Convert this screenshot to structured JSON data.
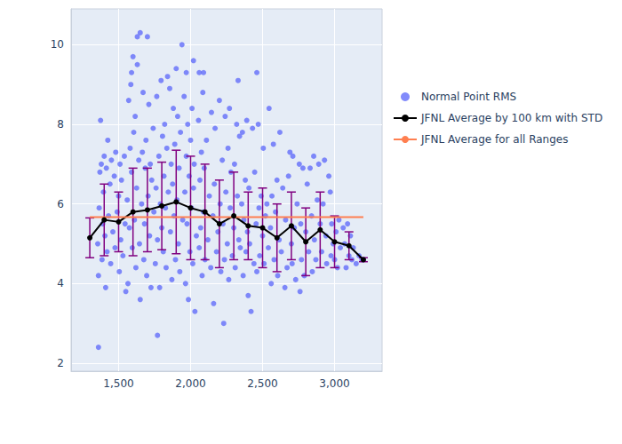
{
  "chart_data": {
    "type": "scatter",
    "xlim": [
      1170,
      3330
    ],
    "xticks": [
      1500,
      2000,
      2500,
      3000
    ],
    "ylim": [
      1.8,
      10.9
    ],
    "yticks": [
      2,
      4,
      6,
      8,
      10
    ],
    "grid": true,
    "legend": "right",
    "series": [
      {
        "name": "Normal Point RMS",
        "type": "scatter",
        "marker": "circle",
        "color": "#636efa",
        "x": [
          1355,
          1360,
          1365,
          1370,
          1375,
          1380,
          1385,
          1390,
          1395,
          1400,
          1405,
          1410,
          1415,
          1420,
          1425,
          1430,
          1440,
          1445,
          1450,
          1460,
          1470,
          1475,
          1480,
          1490,
          1500,
          1505,
          1510,
          1515,
          1520,
          1530,
          1540,
          1545,
          1550,
          1560,
          1565,
          1570,
          1575,
          1580,
          1585,
          1590,
          1595,
          1605,
          1610,
          1615,
          1620,
          1625,
          1630,
          1640,
          1645,
          1650,
          1660,
          1665,
          1670,
          1675,
          1680,
          1685,
          1690,
          1695,
          1705,
          1710,
          1715,
          1720,
          1725,
          1730,
          1740,
          1745,
          1755,
          1760,
          1765,
          1770,
          1780,
          1785,
          1790,
          1795,
          1800,
          1805,
          1810,
          1815,
          1820,
          1825,
          1830,
          1835,
          1845,
          1855,
          1860,
          1865,
          1870,
          1875,
          1880,
          1885,
          1890,
          1895,
          1900,
          1905,
          1910,
          1915,
          1920,
          1925,
          1930,
          1945,
          1955,
          1960,
          1965,
          1970,
          1975,
          1980,
          1985,
          1990,
          1995,
          2000,
          2005,
          2010,
          2015,
          2020,
          2025,
          2040,
          2055,
          2060,
          2065,
          2070,
          2075,
          2080,
          2085,
          2090,
          2095,
          2100,
          2110,
          2120,
          2130,
          2140,
          2145,
          2155,
          2160,
          2165,
          2170,
          2180,
          2190,
          2200,
          2205,
          2210,
          2220,
          2225,
          2235,
          2240,
          2245,
          2255,
          2260,
          2265,
          2270,
          2275,
          2280,
          2290,
          2300,
          2305,
          2310,
          2320,
          2325,
          2335,
          2340,
          2345,
          2355,
          2360,
          2365,
          2370,
          2380,
          2385,
          2390,
          2395,
          2400,
          2405,
          2410,
          2430,
          2440,
          2445,
          2455,
          2460,
          2470,
          2475,
          2480,
          2490,
          2500,
          2505,
          2510,
          2520,
          2530,
          2540,
          2545,
          2555,
          2560,
          2565,
          2575,
          2580,
          2590,
          2600,
          2605,
          2615,
          2620,
          2630,
          2640,
          2655,
          2660,
          2670,
          2680,
          2690,
          2700,
          2705,
          2710,
          2720,
          2730,
          2740,
          2755,
          2760,
          2765,
          2770,
          2780,
          2790,
          2800,
          2810,
          2820,
          2830,
          2840,
          2845,
          2855,
          2860,
          2870,
          2880,
          2890,
          2900,
          2910,
          2920,
          2930,
          2940,
          2945,
          2960,
          2970,
          2975,
          2980,
          2990,
          3000,
          3010,
          3020,
          3030,
          3040,
          3060,
          3070,
          3080,
          3090,
          3100,
          3110,
          3120,
          3130,
          3150,
          3170,
          3190,
          3200,
          1360,
          1770,
          2230,
          2420,
          2030,
          1650,
          1630,
          1700,
          1940,
          1600,
          2020,
          1590,
          1840,
          1970,
          2460,
          2330,
          2090,
          2060
        ],
        "values": [
          5.0,
          4.2,
          5.9,
          6.8,
          8.1,
          7.0,
          4.6,
          5.5,
          6.3,
          7.2,
          5.2,
          3.9,
          6.9,
          4.8,
          7.6,
          5.7,
          6.5,
          4.5,
          7.1,
          5.3,
          6.7,
          4.9,
          7.3,
          5.8,
          6.2,
          4.3,
          7.0,
          5.1,
          6.6,
          4.7,
          7.2,
          5.5,
          3.8,
          6.1,
          4.0,
          8.6,
          5.4,
          7.4,
          9.0,
          6.8,
          4.9,
          7.8,
          5.6,
          8.2,
          4.4,
          6.4,
          9.5,
          7.1,
          5.0,
          3.6,
          6.0,
          7.3,
          8.8,
          4.6,
          5.5,
          6.9,
          7.6,
          4.2,
          6.2,
          8.5,
          5.2,
          7.0,
          3.9,
          6.6,
          7.9,
          5.8,
          4.5,
          6.4,
          8.7,
          5.1,
          7.2,
          3.9,
          6.0,
          9.1,
          5.4,
          7.7,
          4.8,
          6.7,
          8.0,
          5.9,
          4.4,
          7.4,
          6.3,
          8.9,
          5.3,
          7.0,
          4.1,
          6.5,
          8.4,
          5.7,
          7.5,
          4.6,
          9.4,
          6.1,
          8.2,
          5.0,
          6.9,
          4.3,
          7.8,
          5.6,
          8.7,
          6.3,
          4.0,
          7.2,
          5.5,
          8.0,
          3.6,
          6.7,
          4.8,
          7.6,
          5.9,
          8.4,
          4.5,
          6.4,
          7.0,
          5.2,
          8.1,
          4.9,
          6.6,
          5.4,
          7.3,
          4.2,
          8.8,
          5.8,
          6.9,
          4.6,
          7.6,
          5.1,
          6.2,
          4.4,
          8.3,
          5.7,
          3.5,
          6.5,
          7.9,
          4.8,
          5.3,
          8.6,
          6.0,
          4.3,
          7.1,
          5.5,
          4.6,
          8.2,
          6.3,
          5.0,
          7.4,
          4.1,
          8.4,
          5.9,
          6.8,
          4.7,
          5.4,
          7.0,
          4.4,
          8.0,
          6.2,
          5.1,
          7.7,
          4.9,
          6.0,
          7.8,
          4.2,
          5.6,
          6.6,
          4.8,
          8.1,
          5.3,
          3.7,
          6.4,
          5.0,
          7.9,
          4.5,
          6.8,
          5.5,
          4.3,
          8.0,
          5.9,
          4.7,
          6.2,
          5.2,
          7.4,
          4.5,
          5.7,
          6.0,
          4.9,
          8.4,
          5.4,
          4.0,
          6.2,
          7.5,
          4.6,
          5.8,
          6.6,
          4.2,
          5.1,
          7.8,
          4.8,
          6.4,
          3.9,
          5.6,
          4.4,
          6.7,
          7.3,
          5.0,
          4.5,
          7.2,
          5.4,
          4.1,
          6.0,
          7.0,
          3.8,
          5.5,
          4.6,
          6.9,
          4.2,
          5.3,
          6.5,
          4.8,
          6.9,
          5.7,
          4.3,
          7.2,
          5.1,
          4.6,
          6.1,
          7.0,
          5.5,
          4.8,
          6.0,
          7.1,
          5.2,
          4.5,
          6.7,
          6.3,
          4.7,
          5.5,
          5.0,
          4.6,
          5.3,
          4.4,
          5.6,
          4.9,
          5.4,
          5.0,
          4.4,
          5.5,
          4.7,
          5.2,
          4.6,
          4.9,
          4.5,
          4.7,
          4.6,
          4.6,
          2.4,
          2.7,
          3.0,
          3.3,
          3.3,
          10.3,
          10.2,
          10.2,
          10.0,
          9.7,
          9.6,
          9.3,
          9.2,
          9.3,
          9.3,
          9.1,
          9.3,
          9.3
        ]
      },
      {
        "name": "JFNL Average by 100 km with STD",
        "type": "line",
        "marker": "circle",
        "color": "#000000",
        "x": [
          1300,
          1400,
          1500,
          1600,
          1700,
          1800,
          1900,
          2000,
          2100,
          2200,
          2300,
          2400,
          2500,
          2600,
          2700,
          2800,
          2900,
          3000,
          3100,
          3200
        ],
        "values": [
          5.15,
          5.6,
          5.55,
          5.8,
          5.85,
          5.95,
          6.05,
          5.9,
          5.8,
          5.5,
          5.7,
          5.45,
          5.4,
          5.15,
          5.45,
          5.05,
          5.35,
          5.05,
          4.95,
          4.6
        ],
        "std": [
          0.5,
          0.9,
          0.75,
          1.1,
          1.05,
          1.1,
          1.3,
          1.3,
          1.2,
          1.1,
          1.1,
          0.85,
          1.0,
          0.85,
          0.85,
          0.85,
          0.95,
          0.65,
          0.35,
          0.05
        ]
      },
      {
        "name": "JFNL Average for all Ranges",
        "type": "line",
        "color": "#ff7f50",
        "x": [
          1300,
          3200
        ],
        "values": [
          5.67,
          5.67
        ]
      }
    ]
  }
}
